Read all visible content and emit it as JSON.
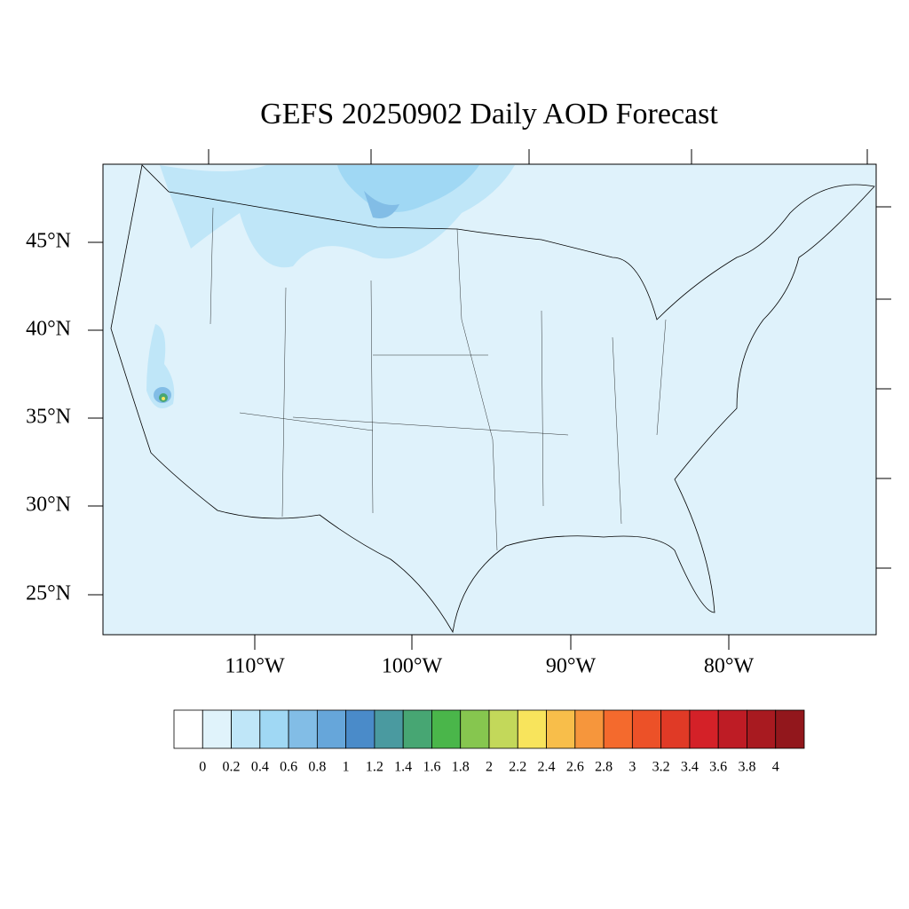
{
  "map": {
    "title": "GEFS 20250902 Daily AOD Forecast",
    "lat_labels": [
      "45°N",
      "40°N",
      "35°N",
      "30°N",
      "25°N"
    ],
    "lon_labels": [
      "110°W",
      "100°W",
      "90°W",
      "80°W"
    ],
    "colorbar": {
      "levels": [
        0,
        0.2,
        0.4,
        0.6,
        0.8,
        1,
        1.2,
        1.4,
        1.6,
        1.8,
        2,
        2.2,
        2.4,
        2.6,
        2.8,
        3,
        3.2,
        3.4,
        3.6,
        3.8,
        4
      ],
      "colors": [
        "#ffffff",
        "#e0f3fb",
        "#bfe6f8",
        "#a0d8f4",
        "#82bde6",
        "#66a6da",
        "#4a8bc9",
        "#4a9aa0",
        "#47a673",
        "#4ab64a",
        "#86c64f",
        "#c3d85a",
        "#f8e45c",
        "#f8be4a",
        "#f6963c",
        "#f46a2d",
        "#ec5128",
        "#e03a26",
        "#d42128",
        "#be1c25",
        "#a81a20",
        "#92171c"
      ]
    }
  }
}
